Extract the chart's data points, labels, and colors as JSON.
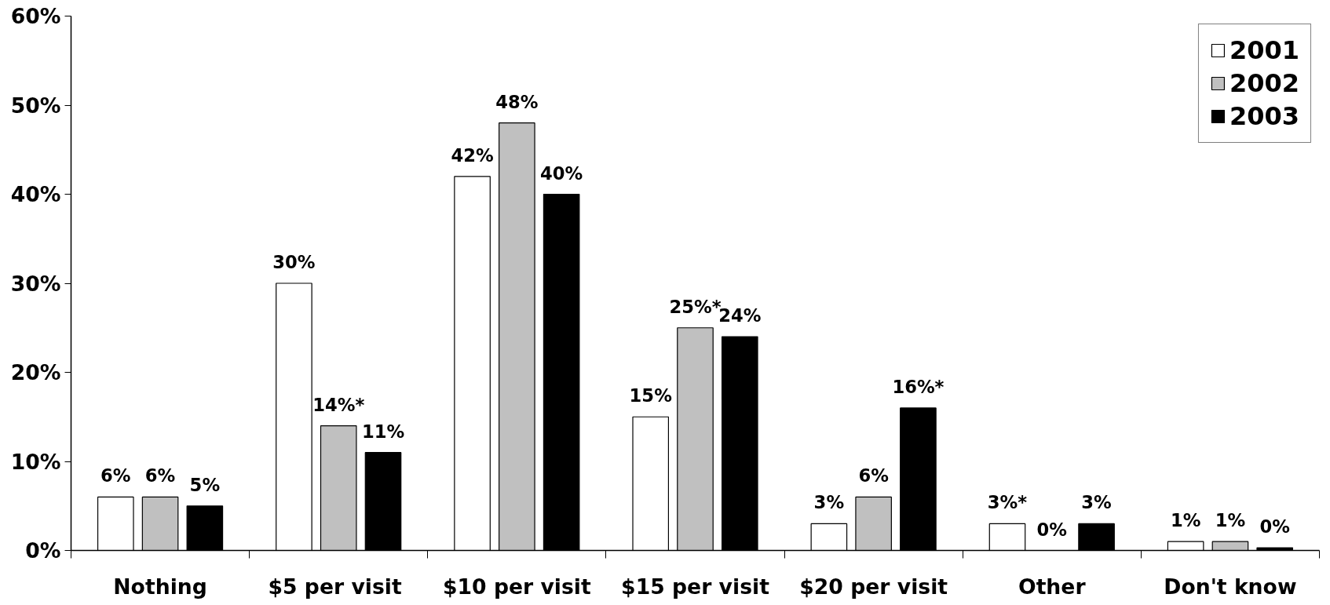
{
  "chart_data": {
    "type": "bar",
    "categories": [
      "Nothing",
      "$5 per  visit",
      "$10 per visit",
      "$15 per visit",
      "$20 per visit",
      "Other",
      "Don't know"
    ],
    "series": [
      {
        "name": "2001",
        "color": "#ffffff",
        "values": [
          6,
          30,
          42,
          15,
          3,
          3,
          1
        ],
        "value_labels": [
          "6%",
          "30%",
          "42%",
          "15%",
          "3%",
          "3%*",
          "1%"
        ]
      },
      {
        "name": "2002",
        "color": "#c0c0c0",
        "values": [
          6,
          14,
          48,
          25,
          6,
          0,
          1
        ],
        "value_labels": [
          "6%",
          "14%*",
          "48%",
          "25%*",
          "6%",
          "0%",
          "1%"
        ]
      },
      {
        "name": "2003",
        "color": "#000000",
        "values": [
          5,
          11,
          40,
          24,
          16,
          3,
          0.3
        ],
        "value_labels": [
          "5%",
          "11%",
          "40%",
          "24%",
          "16%*",
          "3%",
          "0%"
        ]
      }
    ],
    "ylim": [
      0,
      60
    ],
    "yticks": [
      {
        "value": 0,
        "label": "0%"
      },
      {
        "value": 10,
        "label": "10%"
      },
      {
        "value": 20,
        "label": "20%"
      },
      {
        "value": 30,
        "label": "30%"
      },
      {
        "value": 40,
        "label": "40%"
      },
      {
        "value": 50,
        "label": "50%"
      },
      {
        "value": 60,
        "label": "60%"
      }
    ],
    "grid": false,
    "legend": "top right"
  }
}
